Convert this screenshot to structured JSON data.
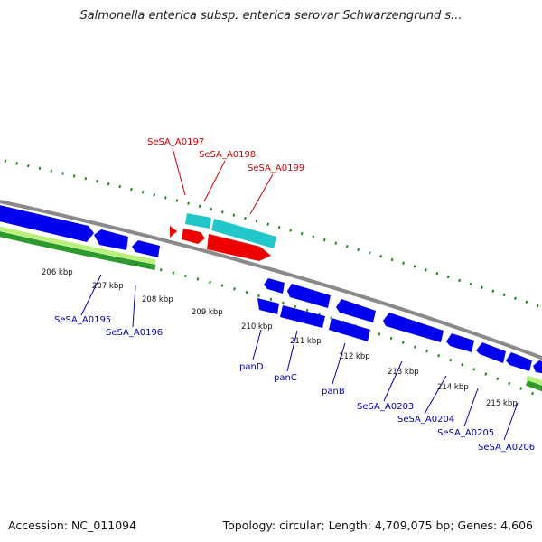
{
  "header": {
    "title": "Salmonella enterica subsp. enterica serovar Schwarzengrund s..."
  },
  "footer": {
    "accession": "Accession: NC_011094",
    "summary": "Topology: circular; Length: 4,709,075 bp; Genes: 4,606"
  },
  "ruler_ticks": [
    "206 kbp",
    "207 kbp",
    "208 kbp",
    "209 kbp",
    "210 kbp",
    "211 kbp",
    "212 kbp",
    "213 kbp",
    "214 kbp",
    "215 kbp"
  ],
  "forward_gene_labels": [
    "SeSA_A0197",
    "SeSA_A0198",
    "SeSA_A0199"
  ],
  "reverse_gene_labels": [
    "SeSA_A0195",
    "SeSA_A0196",
    "panD",
    "panC",
    "panB",
    "SeSA_A0203",
    "SeSA_A0204",
    "SeSA_A0205",
    "SeSA_A0206"
  ],
  "colors": {
    "backbone": "#8a8a8a",
    "forward_cds": "#ee0000",
    "forward_feature": "#22c7cc",
    "reverse_cds": "#0000ee",
    "reverse_feature_light": "#b8f07a",
    "reverse_feature_dark": "#2e9a2e",
    "tick_green": "#1a8a1a",
    "label_red": "#cc0000",
    "label_blue": "#0000aa"
  }
}
